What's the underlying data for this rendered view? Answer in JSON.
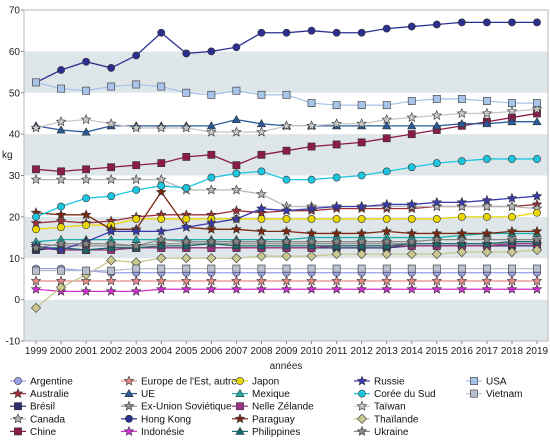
{
  "chart_data": {
    "type": "line",
    "ylabel": "kg",
    "xlabel": "années",
    "ylim": [
      -10,
      70
    ],
    "yticks": [
      -10,
      0,
      10,
      20,
      30,
      40,
      50,
      60,
      70
    ],
    "x": [
      1999,
      2000,
      2001,
      2002,
      2003,
      2004,
      2005,
      2006,
      2007,
      2008,
      2009,
      2010,
      2011,
      2012,
      2013,
      2014,
      2015,
      2016,
      2017,
      2018,
      2019
    ],
    "grid": "alternating horizontal bands",
    "legend_position": "bottom",
    "series": [
      {
        "name": "Argentine",
        "color": "#9aa0e6",
        "marker": "circle",
        "values": [
          7.5,
          7.5,
          7.0,
          6.5,
          6.5,
          6.5,
          6.5,
          6.5,
          6.5,
          6.5,
          6.5,
          6.5,
          6.5,
          6.5,
          6.5,
          6.5,
          6.5,
          6.5,
          6.5,
          6.5,
          6.5
        ]
      },
      {
        "name": "Australie",
        "color": "#a0303a",
        "marker": "star",
        "values": [
          18.5,
          19.0,
          18.5,
          19.0,
          20.0,
          20.5,
          20.5,
          20.5,
          21.5,
          21.0,
          21.5,
          21.5,
          22.0,
          22.0,
          22.0,
          22.0,
          22.5,
          22.5,
          22.5,
          22.5,
          23.0
        ]
      },
      {
        "name": "Brésil",
        "color": "#2f2f6f",
        "marker": "square",
        "values": [
          12.0,
          12.5,
          12.0,
          12.5,
          12.5,
          12.5,
          12.5,
          12.5,
          12.5,
          12.5,
          12.5,
          12.5,
          12.5,
          12.5,
          12.5,
          13.0,
          13.0,
          13.0,
          13.0,
          13.0,
          13.0
        ]
      },
      {
        "name": "Canada",
        "color": "#b8b8b8",
        "marker": "star",
        "values": [
          29.0,
          29.0,
          29.0,
          29.0,
          29.0,
          29.0,
          26.5,
          26.5,
          26.5,
          25.5,
          22.5,
          22.5,
          22.5,
          22.5,
          22.5,
          22.5,
          22.5,
          22.5,
          22.5,
          22.5,
          22.0
        ]
      },
      {
        "name": "Chine",
        "color": "#8b1c4a",
        "marker": "square",
        "values": [
          31.5,
          31.0,
          31.5,
          32.0,
          32.5,
          33.0,
          34.5,
          35.0,
          32.5,
          35.0,
          36.0,
          37.0,
          37.5,
          38.0,
          39.0,
          40.0,
          41.0,
          42.0,
          43.0,
          44.0,
          45.0
        ]
      },
      {
        "name": "Europe de l'Est, autres",
        "color": "#e88a8a",
        "marker": "star",
        "values": [
          4.5,
          4.5,
          4.5,
          4.5,
          4.5,
          4.5,
          4.5,
          4.5,
          4.5,
          4.5,
          4.5,
          4.5,
          4.5,
          4.5,
          4.5,
          4.5,
          4.5,
          4.5,
          4.5,
          4.5,
          4.5
        ]
      },
      {
        "name": "UE",
        "color": "#2a5a9a",
        "marker": "triangle",
        "values": [
          42.0,
          41.0,
          40.5,
          42.0,
          42.0,
          42.0,
          42.0,
          42.0,
          43.5,
          42.5,
          42.0,
          42.0,
          42.0,
          42.0,
          42.0,
          42.0,
          42.0,
          42.5,
          42.5,
          43.0,
          43.0
        ]
      },
      {
        "name": "Ex-Union Soviétique",
        "color": "#909090",
        "marker": "star",
        "values": [
          13.5,
          13.0,
          13.0,
          13.0,
          13.0,
          13.5,
          13.5,
          13.5,
          13.5,
          13.5,
          13.5,
          13.5,
          13.5,
          13.5,
          13.5,
          13.5,
          13.5,
          13.5,
          13.5,
          13.5,
          13.5
        ]
      },
      {
        "name": "Hong Kong",
        "color": "#2b2f8f",
        "marker": "circle",
        "values": [
          52.5,
          55.5,
          57.5,
          56.0,
          59.0,
          64.5,
          59.5,
          60.0,
          61.0,
          64.5,
          64.5,
          65.0,
          64.5,
          64.5,
          65.5,
          66.0,
          66.5,
          67.0,
          67.0,
          67.0,
          67.0
        ]
      },
      {
        "name": "Indonésie",
        "color": "#d030d0",
        "marker": "star",
        "values": [
          2.5,
          2.0,
          2.0,
          2.0,
          2.0,
          2.5,
          2.5,
          2.5,
          2.5,
          2.5,
          2.5,
          2.5,
          2.5,
          2.5,
          2.5,
          2.5,
          2.5,
          2.5,
          2.5,
          2.5,
          2.5
        ]
      },
      {
        "name": "Japon",
        "color": "#e8d800",
        "marker": "circle",
        "values": [
          17.0,
          17.5,
          18.0,
          18.0,
          19.5,
          19.5,
          19.5,
          19.5,
          19.5,
          19.5,
          19.5,
          19.5,
          19.5,
          19.5,
          19.5,
          19.5,
          19.5,
          20.0,
          20.0,
          20.0,
          21.0
        ]
      },
      {
        "name": "Mexique",
        "color": "#20b0b0",
        "marker": "triangle",
        "values": [
          14.0,
          14.5,
          14.5,
          14.5,
          14.5,
          14.5,
          14.5,
          14.5,
          14.5,
          14.5,
          14.5,
          15.0,
          15.0,
          15.0,
          15.0,
          15.0,
          15.0,
          15.5,
          16.0,
          16.0,
          16.0
        ]
      },
      {
        "name": "Nelle Zélande",
        "color": "#a03080",
        "marker": "square",
        "values": [
          12.5,
          12.0,
          12.0,
          12.0,
          12.5,
          12.5,
          12.5,
          12.5,
          12.5,
          12.5,
          12.5,
          12.5,
          13.0,
          13.0,
          13.0,
          13.0,
          13.0,
          13.0,
          13.0,
          13.5,
          13.5
        ]
      },
      {
        "name": "Paraguay",
        "color": "#7a2a10",
        "marker": "star",
        "values": [
          21.0,
          20.5,
          20.5,
          17.0,
          17.0,
          26.0,
          17.5,
          17.0,
          17.0,
          16.5,
          16.5,
          16.0,
          16.0,
          16.0,
          16.5,
          16.0,
          16.0,
          16.0,
          16.0,
          16.5,
          16.5
        ]
      },
      {
        "name": "Philippines",
        "color": "#1a6a6a",
        "marker": "triangle",
        "values": [
          12.5,
          12.5,
          12.0,
          12.5,
          12.5,
          13.0,
          13.0,
          13.5,
          13.0,
          13.0,
          13.0,
          13.0,
          13.0,
          13.0,
          13.0,
          13.5,
          13.5,
          13.5,
          13.5,
          14.0,
          14.0
        ]
      },
      {
        "name": "Russie",
        "color": "#3a3ab0",
        "marker": "star",
        "values": [
          13.0,
          12.0,
          14.0,
          16.5,
          16.5,
          16.5,
          17.5,
          18.5,
          19.5,
          22.0,
          21.5,
          22.0,
          22.5,
          22.5,
          23.0,
          23.0,
          23.5,
          23.5,
          24.0,
          24.5,
          25.0
        ]
      },
      {
        "name": "Corée du Sud",
        "color": "#1cc6e0",
        "marker": "circle",
        "values": [
          20.0,
          22.5,
          24.5,
          25.0,
          26.5,
          27.5,
          27.0,
          29.5,
          30.5,
          31.0,
          29.0,
          29.0,
          29.5,
          30.0,
          31.0,
          32.0,
          33.0,
          33.5,
          34.0,
          34.0,
          34.0
        ]
      },
      {
        "name": "Taïwan",
        "color": "#c8c8c8",
        "marker": "star",
        "values": [
          41.5,
          43.0,
          43.5,
          42.5,
          41.5,
          41.5,
          41.5,
          40.5,
          40.5,
          40.5,
          42.0,
          42.0,
          42.5,
          42.5,
          43.5,
          44.0,
          44.5,
          45.0,
          45.0,
          45.5,
          46.0
        ]
      },
      {
        "name": "Thaïlande",
        "color": "#c8c890",
        "marker": "diamond",
        "values": [
          -2.0,
          3.0,
          6.0,
          9.5,
          9.0,
          10.0,
          10.0,
          10.0,
          10.0,
          10.5,
          10.5,
          10.5,
          11.0,
          11.0,
          11.0,
          11.0,
          11.0,
          11.5,
          11.5,
          11.5,
          12.0
        ]
      },
      {
        "name": "Ukraine",
        "color": "#888888",
        "marker": "star",
        "values": [
          12.5,
          13.5,
          13.5,
          13.5,
          13.0,
          14.5,
          14.0,
          14.0,
          14.0,
          14.0,
          14.0,
          14.0,
          14.0,
          14.0,
          14.0,
          14.0,
          14.5,
          14.5,
          14.5,
          14.5,
          14.5
        ]
      },
      {
        "name": "USA",
        "color": "#a8c4e8",
        "marker": "square",
        "values": [
          52.5,
          51.0,
          50.5,
          51.5,
          52.0,
          51.5,
          50.0,
          49.5,
          50.5,
          49.5,
          49.5,
          47.5,
          47.0,
          47.0,
          47.0,
          48.0,
          48.5,
          48.5,
          48.0,
          47.5,
          47.5
        ]
      },
      {
        "name": "Vietnam",
        "color": "#b8c0d0",
        "marker": "square",
        "values": [
          7.0,
          7.0,
          7.0,
          7.0,
          7.5,
          7.5,
          7.5,
          7.5,
          7.5,
          7.5,
          7.5,
          7.5,
          7.5,
          7.5,
          7.5,
          7.5,
          7.5,
          7.5,
          7.5,
          7.5,
          7.5
        ]
      }
    ]
  }
}
